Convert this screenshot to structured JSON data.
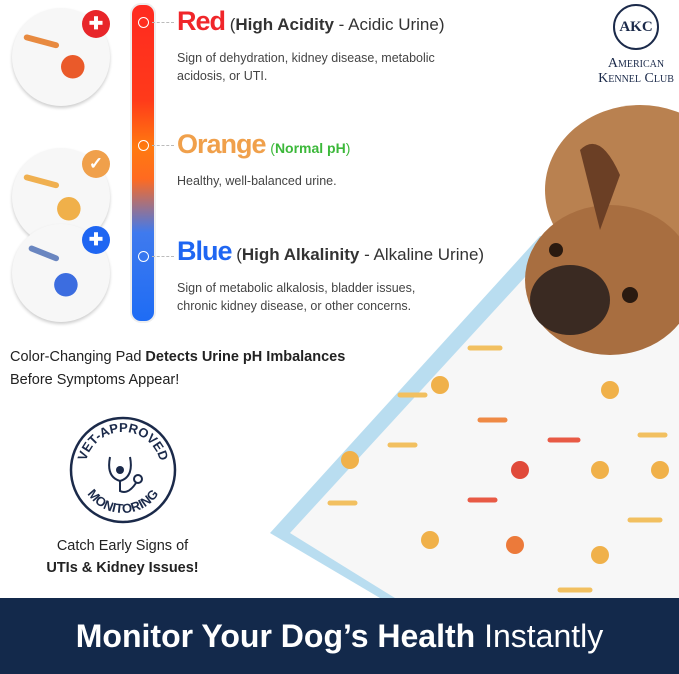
{
  "levels": [
    {
      "name": "Red",
      "paren_bold": "High Acidity",
      "paren_rest": " - Acidic Urine",
      "desc": "Sign of dehydration, kidney disease, metabolic acidosis, or UTI.",
      "color": "#f0262a",
      "badge_icon": "medical-paw-icon"
    },
    {
      "name": "Orange",
      "paren_bold": "Normal pH",
      "paren_rest": "",
      "desc": "Healthy, well-balanced urine.",
      "color": "#f0a04b",
      "paren_color": "#3cb83a",
      "badge_icon": "check-icon"
    },
    {
      "name": "Blue",
      "paren_bold": "High Alkalinity",
      "paren_rest": " - Alkaline Urine",
      "desc": "Sign of metabolic alkalosis, bladder issues, chronic kidney disease, or other concerns.",
      "color": "#1f66f2",
      "badge_icon": "medical-paw-icon"
    }
  ],
  "logo": {
    "line1": "American",
    "line2": "Kennel Club",
    "seal": "AKC"
  },
  "tagline": {
    "plain": "Color-Changing Pad ",
    "bold": "Detects Urine pH Imbalances",
    "line2": "Before Symptoms Appear!"
  },
  "seal": {
    "top": "VET-APPROVED",
    "bottom": "MONITORING"
  },
  "catch": {
    "line1": "Catch Early Signs of",
    "line2": "UTIs & Kidney Issues!"
  },
  "banner": {
    "bold": "Monitor Your Dog’s Health",
    "light": " Instantly",
    "bg": "#13294b"
  }
}
